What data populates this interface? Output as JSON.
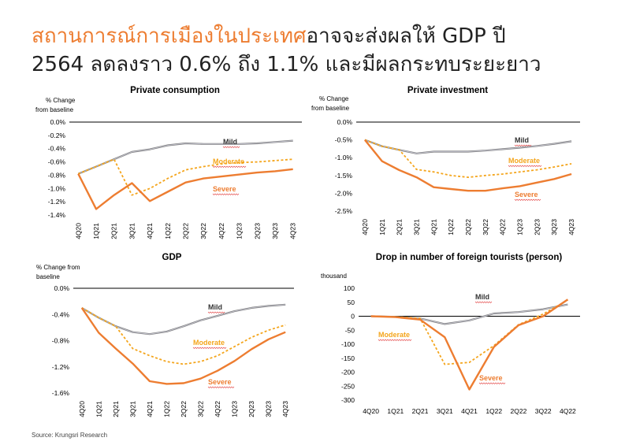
{
  "header": {
    "title_highlight": "สถานการณ์การเมืองในประเทศ",
    "title_rest": "อาจจะส่งผลให้    GDP ปี",
    "title_line2": "2564 ลดลงราว    0.6% ถึง    1.1% และมีผลกระทบระยะยาว"
  },
  "source": "Source: Krungsri Research",
  "colors": {
    "mild": "#808080",
    "moderate": "#F4A51C",
    "severe": "#ED7D31",
    "title_accent": "#ED7D31"
  },
  "chart_data": [
    {
      "type": "line",
      "title": "Private consumption",
      "ylabel": "% Change from baseline",
      "categories": [
        "4Q20",
        "1Q21",
        "2Q21",
        "3Q21",
        "4Q21",
        "1Q22",
        "2Q22",
        "3Q22",
        "4Q22",
        "1Q23",
        "2Q23",
        "3Q23",
        "4Q23"
      ],
      "ylim": [
        -1.4,
        0.0
      ],
      "yticks": [
        0.0,
        -0.2,
        -0.4,
        -0.6,
        -0.8,
        -1.0,
        -1.2,
        -1.4
      ],
      "ytick_labels": [
        "0.0%",
        "-0.2%",
        "-0.4%",
        "-0.6%",
        "-0.8%",
        "-1.0%",
        "-1.2%",
        "-1.4%"
      ],
      "series": [
        {
          "name": "Mild",
          "key": "mild",
          "values": [
            -0.78,
            -0.67,
            -0.56,
            -0.45,
            -0.41,
            -0.35,
            -0.32,
            -0.33,
            -0.33,
            -0.33,
            -0.32,
            -0.3,
            -0.28
          ]
        },
        {
          "name": "Moderate",
          "key": "moderate",
          "values": [
            -0.78,
            -0.67,
            -0.56,
            -1.1,
            -1.0,
            -0.85,
            -0.72,
            -0.67,
            -0.63,
            -0.61,
            -0.6,
            -0.58,
            -0.56
          ]
        },
        {
          "name": "Severe",
          "key": "severe",
          "values": [
            -0.78,
            -1.31,
            -1.1,
            -0.92,
            -1.19,
            -1.05,
            -0.91,
            -0.85,
            -0.82,
            -0.79,
            -0.76,
            -0.74,
            -0.71
          ]
        }
      ]
    },
    {
      "type": "line",
      "title": "Private investment",
      "ylabel": "% Change from baseline",
      "categories": [
        "4Q20",
        "1Q21",
        "2Q21",
        "3Q21",
        "4Q21",
        "1Q22",
        "2Q22",
        "3Q22",
        "4Q22",
        "1Q23",
        "2Q23",
        "3Q23",
        "4Q23"
      ],
      "ylim": [
        -2.5,
        0.0
      ],
      "yticks": [
        0.0,
        -0.5,
        -1.0,
        -1.5,
        -2.0,
        -2.5
      ],
      "ytick_labels": [
        "0.0%",
        "-0.5%",
        "-1.0%",
        "-1.5%",
        "-2.0%",
        "-2.5%"
      ],
      "series": [
        {
          "name": "Mild",
          "key": "mild",
          "values": [
            -0.5,
            -0.68,
            -0.78,
            -0.88,
            -0.83,
            -0.83,
            -0.83,
            -0.8,
            -0.76,
            -0.72,
            -0.67,
            -0.61,
            -0.54
          ]
        },
        {
          "name": "Moderate",
          "key": "moderate",
          "values": [
            -0.5,
            -0.68,
            -0.78,
            -1.33,
            -1.4,
            -1.5,
            -1.55,
            -1.5,
            -1.46,
            -1.4,
            -1.34,
            -1.26,
            -1.17
          ]
        },
        {
          "name": "Severe",
          "key": "severe",
          "values": [
            -0.5,
            -1.1,
            -1.35,
            -1.55,
            -1.83,
            -1.88,
            -1.93,
            -1.93,
            -1.86,
            -1.8,
            -1.7,
            -1.6,
            -1.46
          ]
        }
      ]
    },
    {
      "type": "line",
      "title": "GDP",
      "ylabel": "% Change from baseline",
      "categories": [
        "4Q20",
        "1Q21",
        "2Q21",
        "3Q21",
        "4Q21",
        "1Q22",
        "2Q22",
        "3Q22",
        "4Q22",
        "1Q23",
        "2Q23",
        "3Q23",
        "4Q23"
      ],
      "ylim": [
        -1.6,
        0.0
      ],
      "yticks": [
        0.0,
        -0.4,
        -0.8,
        -1.2,
        -1.6
      ],
      "ytick_labels": [
        "0.0%",
        "-0.4%",
        "-0.8%",
        "-1.2%",
        "-1.6%"
      ],
      "series": [
        {
          "name": "Mild",
          "key": "mild",
          "values": [
            -0.3,
            -0.45,
            -0.58,
            -0.67,
            -0.7,
            -0.66,
            -0.58,
            -0.49,
            -0.42,
            -0.35,
            -0.3,
            -0.27,
            -0.25
          ]
        },
        {
          "name": "Moderate",
          "key": "moderate",
          "values": [
            -0.3,
            -0.45,
            -0.58,
            -0.92,
            -1.03,
            -1.12,
            -1.16,
            -1.12,
            -1.03,
            -0.89,
            -0.75,
            -0.64,
            -0.56
          ]
        },
        {
          "name": "Severe",
          "key": "severe",
          "values": [
            -0.3,
            -0.68,
            -0.92,
            -1.15,
            -1.42,
            -1.46,
            -1.45,
            -1.38,
            -1.26,
            -1.11,
            -0.93,
            -0.78,
            -0.67
          ]
        }
      ]
    },
    {
      "type": "line",
      "title": "Drop in number of foreign tourists (person)",
      "ylabel": "thousand",
      "categories": [
        "4Q20",
        "1Q21",
        "2Q21",
        "3Q21",
        "4Q21",
        "1Q22",
        "2Q22",
        "3Q22",
        "4Q22"
      ],
      "ylim": [
        -300,
        100
      ],
      "yticks": [
        100,
        50,
        0,
        -50,
        -100,
        -150,
        -200,
        -250,
        -300
      ],
      "ytick_labels": [
        "100",
        "50",
        "0",
        "-50",
        "-100",
        "-150",
        "-200",
        "-250",
        "-300"
      ],
      "series": [
        {
          "name": "Mild",
          "key": "mild",
          "values": [
            0,
            -2,
            -8,
            -28,
            -15,
            10,
            15,
            25,
            42
          ]
        },
        {
          "name": "Moderate",
          "key": "moderate",
          "values": [
            0,
            -2,
            -8,
            -172,
            -165,
            -105,
            -30,
            8,
            58
          ]
        },
        {
          "name": "Severe",
          "key": "severe",
          "values": [
            0,
            -3,
            -12,
            -75,
            -262,
            -110,
            -32,
            0,
            60
          ]
        }
      ]
    }
  ]
}
